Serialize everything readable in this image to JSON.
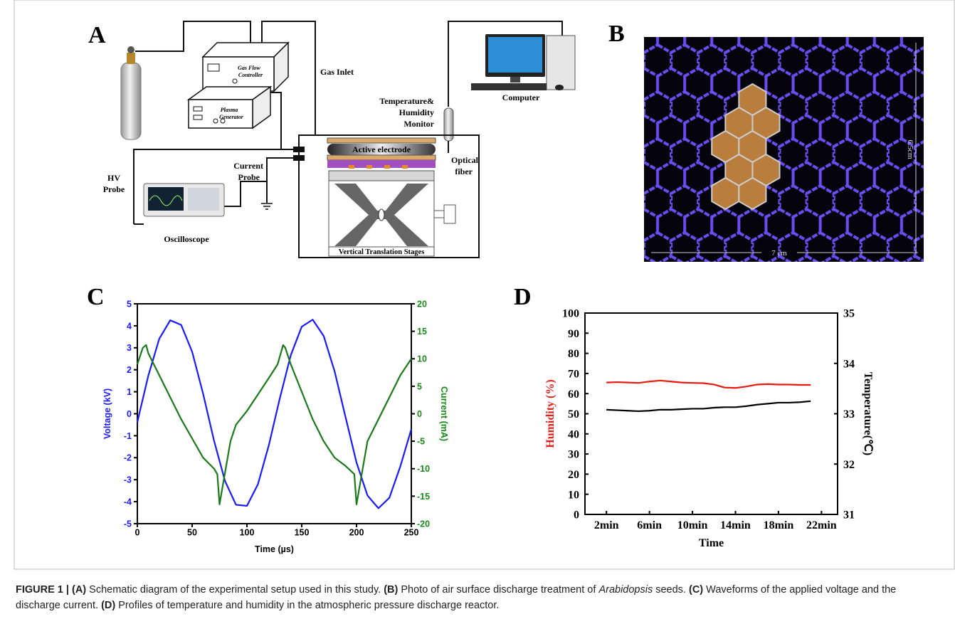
{
  "panel_a": {
    "letter": "A",
    "gas_flow_controller": [
      "Gas Flow",
      "Controller"
    ],
    "plasma_generator": [
      "Plasma",
      "Generator"
    ],
    "gas_inlet": "Gas Inlet",
    "computer": "Computer",
    "monitor": [
      "Temperature&",
      "Humidity",
      "Monitor"
    ],
    "active_electrode": "Active electrode",
    "optical_fiber": [
      "Optical",
      "fiber"
    ],
    "current_probe": [
      "Current",
      "Probe"
    ],
    "hv_probe": [
      "HV",
      "Probe"
    ],
    "oscilloscope": "Oscilloscope",
    "stages": "Vertical Translation Stages"
  },
  "panel_b": {
    "letter": "B",
    "height": "6.5cm",
    "width": "7 cm"
  },
  "chart_data": [
    {
      "type": "line",
      "panel": "C",
      "xlabel": "Time (µs)",
      "ylabel": "Voltage (kV)",
      "y2label": "Current (mA)",
      "xlim": [
        0,
        250
      ],
      "xticks": [
        0,
        50,
        100,
        150,
        200,
        250
      ],
      "ylim": [
        -5,
        5
      ],
      "yticks": [
        -5,
        -4,
        -3,
        -2,
        -1,
        0,
        1,
        2,
        3,
        4,
        5
      ],
      "y2lim": [
        -20,
        20
      ],
      "y2ticks": [
        -20,
        -15,
        -10,
        -5,
        0,
        5,
        10,
        15,
        20
      ],
      "ytick_color": "#1a1aff",
      "ylabel_color": "#1a1aff",
      "y2tick_color": "#1a8a1a",
      "y2label_color": "#1a8a1a",
      "series": [
        {
          "color": "#1a1aff",
          "x": [
            0,
            10,
            20,
            30,
            40,
            50,
            60,
            70,
            80,
            90,
            100,
            110,
            120,
            130,
            140,
            150,
            160,
            170,
            180,
            190,
            200,
            210,
            220,
            230,
            240,
            250
          ],
          "values": [
            -0.38,
            1.73,
            3.41,
            4.25,
            4.04,
            2.82,
            0.91,
            -1.23,
            -3.06,
            -4.14,
            -4.19,
            -3.21,
            -1.43,
            0.7,
            2.66,
            3.96,
            4.28,
            3.54,
            1.93,
            -0.16,
            -2.22,
            -3.72,
            -4.3,
            -3.82,
            -2.39,
            -0.7
          ]
        },
        {
          "color": "#1a7a1a",
          "axis": "y2",
          "x": [
            0,
            5,
            8,
            10,
            20,
            30,
            40,
            50,
            60,
            70,
            73,
            75,
            78,
            85,
            90,
            100,
            110,
            120,
            128,
            133,
            135,
            140,
            150,
            160,
            170,
            180,
            190,
            198,
            200,
            203,
            210,
            220,
            230,
            240,
            250
          ],
          "values": [
            9,
            12,
            12.5,
            11,
            7,
            3,
            -1,
            -4.5,
            -8,
            -10,
            -11,
            -16.5,
            -13,
            -5,
            -2,
            0.5,
            3.5,
            6.5,
            9,
            12.5,
            12,
            9,
            4,
            -1,
            -5,
            -8,
            -9.5,
            -11,
            -16.5,
            -13,
            -5,
            -1,
            3,
            7,
            10
          ]
        }
      ]
    },
    {
      "type": "line",
      "panel": "D",
      "xlabel": "Time",
      "ylabel": "Humidity (%)",
      "y2label": "Temperature(℃)",
      "xlim": [
        0,
        23.5
      ],
      "xticks": [
        {
          "value": 2,
          "label": "2min"
        },
        {
          "value": 6,
          "label": "6min"
        },
        {
          "value": 10,
          "label": "10min"
        },
        {
          "value": 14,
          "label": "14min"
        },
        {
          "value": 18,
          "label": "18min"
        },
        {
          "value": 22,
          "label": "22min"
        }
      ],
      "ylim": [
        0,
        100
      ],
      "yticks": [
        0,
        10,
        20,
        30,
        40,
        50,
        60,
        70,
        80,
        90,
        100
      ],
      "y2lim": [
        31,
        35
      ],
      "y2ticks": [
        31,
        32,
        33,
        34,
        35
      ],
      "ylabel_color": "#e0201a",
      "series": [
        {
          "color": "#e8190f",
          "x": [
            2,
            3,
            4,
            5,
            6,
            7,
            8,
            9,
            10,
            11,
            12,
            13,
            14,
            15,
            16,
            17,
            18,
            19,
            20,
            21
          ],
          "values": [
            65.5,
            65.7,
            65.5,
            65.3,
            66,
            66.5,
            66,
            65.5,
            65.3,
            65.2,
            64.5,
            63,
            62.8,
            63.5,
            64.5,
            64.7,
            64.5,
            64.5,
            64.3,
            64.3
          ]
        },
        {
          "color": "#000000",
          "axis": "y2",
          "x": [
            2,
            3,
            4,
            5,
            6,
            7,
            8,
            9,
            10,
            11,
            12,
            13,
            14,
            15,
            16,
            17,
            18,
            19,
            20,
            21
          ],
          "values": [
            33.08,
            33.07,
            33.06,
            33.05,
            33.06,
            33.08,
            33.08,
            33.09,
            33.1,
            33.1,
            33.12,
            33.13,
            33.13,
            33.15,
            33.18,
            33.2,
            33.22,
            33.22,
            33.23,
            33.25
          ]
        }
      ]
    }
  ],
  "caption": {
    "label": "FIGURE 1 |",
    "a_tag": "(A)",
    "a_text": "Schematic diagram of the experimental setup used in this study.",
    "b_tag": "(B)",
    "b_text": "Photo of air surface discharge treatment of",
    "b_italic": "Arabidopsis",
    "b_after": "seeds.",
    "c_tag": "(C)",
    "c_text": "Waveforms of the applied voltage and the discharge current.",
    "d_tag": "(D)",
    "d_text": "Profiles of temperature and humidity in the atmospheric pressure discharge reactor."
  }
}
